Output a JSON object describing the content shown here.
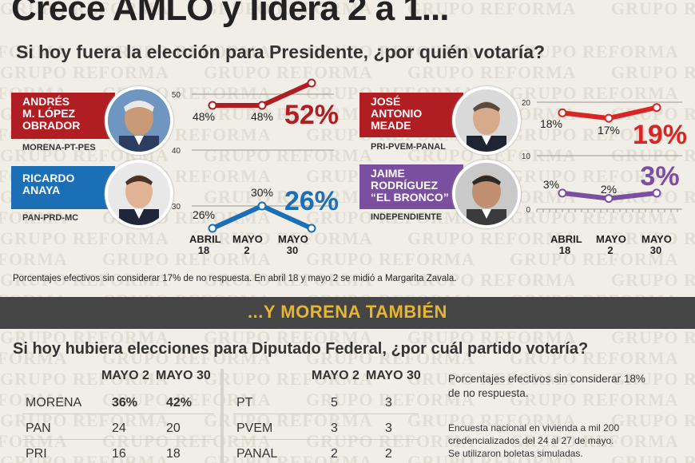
{
  "watermark": "GRUPO REFORMA",
  "title": "Crece AMLO y lidera 2 a 1...",
  "subtitle": "Si hoy fuera la elección para Presidente, ¿por quién votaría?",
  "candidates": [
    {
      "name_lines": [
        "ANDRÉS",
        "M. LÓPEZ",
        "OBRADOR"
      ],
      "party": "MORENA-PT-PES",
      "color": "#b01e23",
      "value_labels": [
        "48%",
        "48%"
      ],
      "final_label": "52%"
    },
    {
      "name_lines": [
        "RICARDO",
        "ANAYA"
      ],
      "party": "PAN-PRD-MC",
      "color": "#1a6fb6",
      "value_labels": [
        "26%",
        "30%"
      ],
      "final_label": "26%"
    },
    {
      "name_lines": [
        "JOSÉ",
        "ANTONIO",
        "MEADE"
      ],
      "party": "PRI-PVEM-PANAL",
      "color": "#b01e23",
      "value_labels": [
        "18%",
        "17%"
      ],
      "final_label": "19%"
    },
    {
      "name_lines": [
        "JAIME",
        "RODRÍGUEZ",
        "“EL BRONCO”"
      ],
      "party": "INDEPENDIENTE",
      "color": "#7a4fa0",
      "value_labels": [
        "3%",
        "2%"
      ],
      "final_label": "3%"
    }
  ],
  "chart_data": [
    {
      "type": "line",
      "x": [
        "ABRIL 18",
        "MAYO 2",
        "MAYO 30"
      ],
      "y_ticks": [
        "50",
        "40",
        "30"
      ],
      "series": [
        {
          "values": [
            48,
            48,
            52
          ],
          "color": "#b01e23"
        },
        {
          "values": [
            26,
            30,
            26
          ],
          "color": "#1a6fb6"
        }
      ]
    },
    {
      "type": "line",
      "x": [
        "ABRIL 18",
        "MAYO 2",
        "MAYO 30"
      ],
      "y_ticks": [
        "20",
        "10",
        "0"
      ],
      "series": [
        {
          "values": [
            18,
            17,
            19
          ],
          "color": "#d82626"
        },
        {
          "values": [
            3,
            2,
            3
          ],
          "color": "#7a4fa0"
        }
      ]
    }
  ],
  "x_labels": [
    {
      "line1": "ABRIL",
      "line2": "18"
    },
    {
      "line1": "MAYO",
      "line2": "2"
    },
    {
      "line1": "MAYO",
      "line2": "30"
    }
  ],
  "note": "Porcentajes efectivos sin considerar 17% de no respuesta. En abril 18 y mayo 2 se midió a Margarita Zavala.",
  "section2": {
    "band_title": "...Y MORENA TAMBIÉN",
    "question": "Si hoy hubiera elecciones para Diputado Federal,  ¿por cuál partido votaría?",
    "headers": [
      "MAYO 2",
      "MAYO 30"
    ],
    "left_rows": [
      {
        "party": "MORENA",
        "v1": "36%",
        "v2": "42%"
      },
      {
        "party": "PAN",
        "v1": "24",
        "v2": "20"
      },
      {
        "party": "PRI",
        "v1": "16",
        "v2": "18"
      }
    ],
    "right_rows": [
      {
        "party": "PT",
        "v1": "5",
        "v2": "3"
      },
      {
        "party": "PVEM",
        "v1": "3",
        "v2": "3"
      },
      {
        "party": "PANAL",
        "v1": "2",
        "v2": "2"
      }
    ],
    "side_note_1": [
      "Porcentajes efectivos sin considerar 18%",
      "de no respuesta."
    ],
    "side_note_2": [
      "Encuesta nacional en vivienda a mil 200",
      "credencializados del 24 al 27 de mayo.",
      "Se utilizaron boletas simuladas."
    ]
  }
}
